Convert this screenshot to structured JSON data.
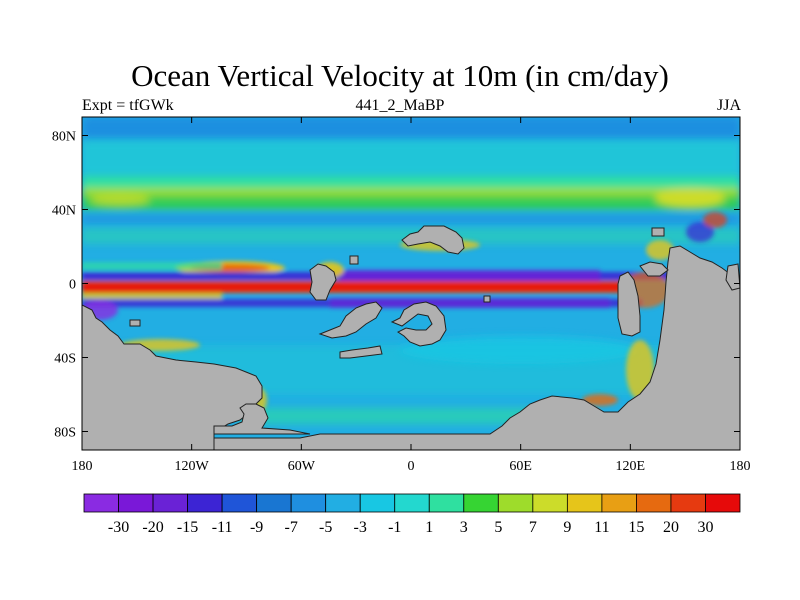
{
  "title": "Ocean Vertical Velocity at 10m (in cm/day)",
  "left_subtitle": "Expt = tfGWk",
  "center_subtitle": "441_2_MaBP",
  "right_subtitle": "JJA",
  "chart_data": {
    "type": "heatmap",
    "projection": "cylindrical-equidistant",
    "xlim": [
      -180,
      180
    ],
    "ylim": [
      -90,
      90
    ],
    "x_ticks": [
      {
        "value": -180,
        "label": "180"
      },
      {
        "value": -120,
        "label": "120W"
      },
      {
        "value": -60,
        "label": "60W"
      },
      {
        "value": 0,
        "label": "0"
      },
      {
        "value": 60,
        "label": "60E"
      },
      {
        "value": 120,
        "label": "120E"
      },
      {
        "value": 180,
        "label": "180"
      }
    ],
    "y_ticks": [
      {
        "value": 80,
        "label": "80N"
      },
      {
        "value": 40,
        "label": "40N"
      },
      {
        "value": 0,
        "label": "0"
      },
      {
        "value": -40,
        "label": "40S"
      },
      {
        "value": -80,
        "label": "80S"
      }
    ],
    "colorbar": {
      "orientation": "horizontal",
      "labels": [
        "-30",
        "-20",
        "-15",
        "-11",
        "-9",
        "-7",
        "-5",
        "-3",
        "-1",
        "1",
        "3",
        "5",
        "7",
        "9",
        "11",
        "15",
        "20",
        "30"
      ],
      "colors": [
        "#8a2be2",
        "#7a18d8",
        "#6a22d6",
        "#3c24d4",
        "#1f55d8",
        "#1976d2",
        "#1f8fe0",
        "#22aee3",
        "#18c7e3",
        "#23d8cf",
        "#2fe0a0",
        "#36d433",
        "#9edc2b",
        "#ccdc2a",
        "#e6c51a",
        "#e89f14",
        "#e66a10",
        "#e63a10",
        "#e60a0a"
      ]
    },
    "field_description": "Predominantly light-blue/cyan ocean (about -5 to -1). Strong positive upwelling (red, >20) along the equator from the Indian Ocean westward to about 180; strong negative (purple/blue) bands just north and south of the equator; bands of green/yellow (positive) near 50N and along continental margins; gray land masses.",
    "land_color": "#b0b0b0",
    "background_ocean_color": "#22aee3"
  }
}
